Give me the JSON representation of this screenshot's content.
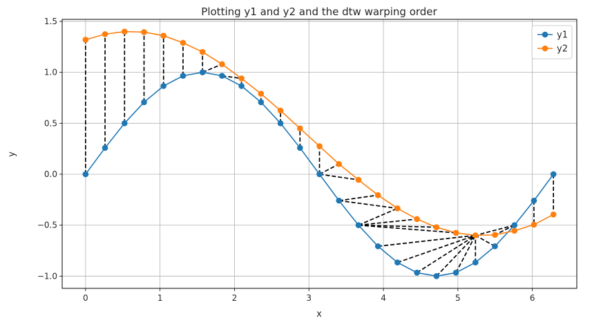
{
  "chart_data": {
    "type": "line",
    "title": "Plotting y1 and y2 and the dtw warping order",
    "xlabel": "x",
    "ylabel": "y",
    "xlim": [
      -0.314,
      6.597
    ],
    "ylim": [
      -1.12,
      1.52
    ],
    "xticks": [
      0,
      1,
      2,
      3,
      4,
      5,
      6
    ],
    "yticks": [
      -1.0,
      -0.5,
      0.0,
      0.5,
      1.0,
      1.5
    ],
    "xtick_labels": [
      "0",
      "1",
      "2",
      "3",
      "4",
      "5",
      "6"
    ],
    "ytick_labels": [
      "−1.0",
      "−0.5",
      "0.0",
      "0.5",
      "1.0",
      "1.5"
    ],
    "grid": true,
    "legend_position": "top-right",
    "x": [
      0,
      0.2618,
      0.5236,
      0.7854,
      1.0472,
      1.309,
      1.5708,
      1.8326,
      2.0944,
      2.3562,
      2.618,
      2.8798,
      3.1416,
      3.4034,
      3.6652,
      3.927,
      4.1888,
      4.4506,
      4.7124,
      4.9742,
      5.236,
      5.4978,
      5.7596,
      6.0214,
      6.2832
    ],
    "series": [
      {
        "name": "y1",
        "color": "#1f77b4",
        "values": [
          0.0,
          0.259,
          0.5,
          0.707,
          0.866,
          0.966,
          1.0,
          0.966,
          0.866,
          0.707,
          0.5,
          0.259,
          0.0,
          -0.259,
          -0.5,
          -0.707,
          -0.866,
          -0.966,
          -1.0,
          -0.966,
          -0.866,
          -0.707,
          -0.5,
          -0.259,
          0.0
        ]
      },
      {
        "name": "y2",
        "color": "#ff7f0e",
        "values": [
          1.32,
          1.375,
          1.4,
          1.395,
          1.36,
          1.29,
          1.2,
          1.08,
          0.94,
          0.79,
          0.625,
          0.45,
          0.275,
          0.1,
          -0.055,
          -0.205,
          -0.335,
          -0.44,
          -0.52,
          -0.575,
          -0.6,
          -0.595,
          -0.555,
          -0.495,
          -0.395
        ]
      }
    ],
    "warping_path": [
      [
        0,
        0
      ],
      [
        1,
        1
      ],
      [
        2,
        2
      ],
      [
        3,
        3
      ],
      [
        4,
        4
      ],
      [
        5,
        5
      ],
      [
        6,
        6
      ],
      [
        6,
        7
      ],
      [
        7,
        8
      ],
      [
        8,
        8
      ],
      [
        9,
        9
      ],
      [
        10,
        10
      ],
      [
        11,
        11
      ],
      [
        12,
        12
      ],
      [
        12,
        13
      ],
      [
        12,
        14
      ],
      [
        13,
        15
      ],
      [
        13,
        16
      ],
      [
        14,
        16
      ],
      [
        14,
        17
      ],
      [
        14,
        18
      ],
      [
        14,
        19
      ],
      [
        15,
        20
      ],
      [
        16,
        20
      ],
      [
        17,
        20
      ],
      [
        18,
        20
      ],
      [
        19,
        20
      ],
      [
        20,
        20
      ],
      [
        21,
        20
      ],
      [
        22,
        20
      ],
      [
        22,
        21
      ],
      [
        22,
        22
      ],
      [
        23,
        23
      ],
      [
        24,
        24
      ]
    ],
    "warping_style": {
      "color": "#000000",
      "dash": "dashed"
    }
  }
}
